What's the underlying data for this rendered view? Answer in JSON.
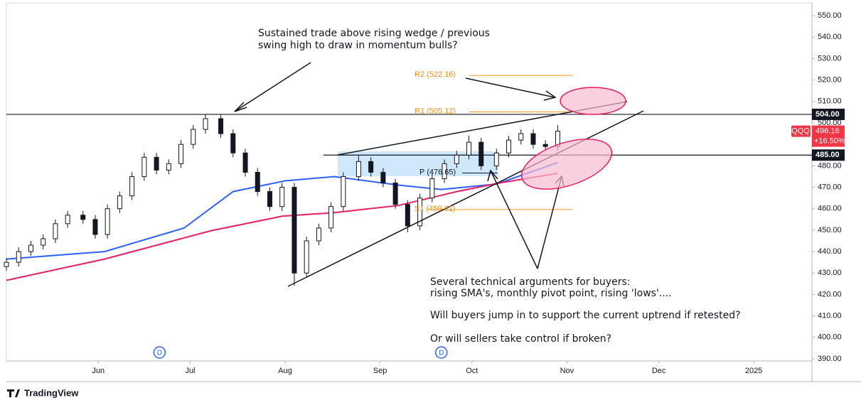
{
  "chart_data": {
    "type": "candlestick",
    "symbol": "QQQ",
    "x": [
      123,
      127,
      131,
      135,
      139,
      143,
      148,
      152,
      156,
      160,
      164,
      168,
      172,
      176,
      180,
      184,
      188,
      193,
      197,
      201,
      205,
      209,
      213,
      217,
      221,
      225,
      229,
      233,
      238,
      242,
      246,
      250,
      254,
      258,
      262,
      266,
      270,
      274,
      278,
      283,
      287,
      291,
      295,
      299,
      303
    ],
    "open": [
      433,
      435,
      440,
      443,
      446,
      453,
      457,
      455,
      448,
      460,
      466,
      475,
      484,
      478,
      481,
      490,
      497,
      502,
      495,
      486,
      477,
      468,
      461,
      470,
      430,
      445,
      451,
      461,
      475,
      482,
      477,
      472,
      462,
      452,
      465,
      474,
      481,
      485,
      491,
      480,
      486,
      492,
      495,
      490,
      489
    ],
    "high": [
      437,
      442,
      445,
      448,
      455,
      459,
      459,
      457,
      462,
      468,
      477,
      486,
      486,
      483,
      492,
      499,
      504,
      504,
      497,
      488,
      479,
      470,
      472,
      472,
      447,
      453,
      463,
      477,
      485,
      484,
      479,
      474,
      464,
      467,
      476,
      483,
      487,
      494,
      493,
      488,
      494,
      497,
      497,
      492,
      499
    ],
    "low": [
      431,
      433,
      438,
      441,
      444,
      451,
      453,
      446,
      446,
      458,
      464,
      473,
      476,
      476,
      479,
      488,
      495,
      493,
      484,
      475,
      466,
      459,
      459,
      424,
      428,
      443,
      449,
      459,
      473,
      475,
      470,
      460,
      449,
      450,
      463,
      472,
      479,
      483,
      478,
      478,
      484,
      490,
      488,
      487,
      487
    ],
    "close": [
      435,
      440,
      443,
      446,
      453,
      457,
      455,
      448,
      460,
      466,
      475,
      484,
      478,
      481,
      490,
      497,
      502,
      495,
      486,
      477,
      468,
      461,
      470,
      430,
      445,
      451,
      461,
      475,
      482,
      477,
      472,
      462,
      452,
      465,
      474,
      481,
      485,
      491,
      480,
      486,
      492,
      495,
      490,
      489,
      496.16
    ],
    "up_color": "#ffffff",
    "down_color": "#131722",
    "sma": [
      {
        "color": "#2962ff",
        "x": [
          123,
          155,
          181,
          197,
          214,
          230,
          251,
          265,
          283,
          303
        ],
        "values": [
          436.5,
          440,
          451,
          468,
          473,
          475,
          471,
          469,
          471.5,
          481.5
        ]
      },
      {
        "color": "#e91e63",
        "x": [
          123,
          155,
          190,
          213,
          230,
          251,
          270,
          284,
          303
        ],
        "values": [
          426.6,
          436.5,
          449.8,
          456.5,
          458.2,
          461.5,
          468,
          472,
          476.5
        ]
      }
    ],
    "xlim": [
      123,
      386
    ],
    "xticks": [
      {
        "value": 153,
        "label": "Jun"
      },
      {
        "value": 183,
        "label": "Jul"
      },
      {
        "value": 214,
        "label": "Aug"
      },
      {
        "value": 245,
        "label": "Sep"
      },
      {
        "value": 275,
        "label": "Oct"
      },
      {
        "value": 306,
        "label": "Nov"
      },
      {
        "value": 336,
        "label": "Dec"
      },
      {
        "value": 367,
        "label": "2025"
      }
    ],
    "ylim": [
      389,
      556
    ],
    "yticks": [
      {
        "value": 390,
        "label": "390.00"
      },
      {
        "value": 400,
        "label": "400.00"
      },
      {
        "value": 410,
        "label": "410.00"
      },
      {
        "value": 420,
        "label": "420.00"
      },
      {
        "value": 430,
        "label": "430.00"
      },
      {
        "value": 440,
        "label": "440.00"
      },
      {
        "value": 450,
        "label": "450.00"
      },
      {
        "value": 460,
        "label": "460.00"
      },
      {
        "value": 470,
        "label": "470.00"
      },
      {
        "value": 480,
        "label": "480.00"
      },
      {
        "value": 490,
        "label": "490.00"
      },
      {
        "value": 500,
        "label": "500.00"
      },
      {
        "value": 510,
        "label": "510.00"
      },
      {
        "value": 520,
        "label": "520.00"
      },
      {
        "value": 530,
        "label": "530.00"
      },
      {
        "value": 540,
        "label": "540.00"
      },
      {
        "value": 550,
        "label": "550.00"
      }
    ],
    "levels": [
      {
        "value": 504,
        "label": "504.00"
      },
      {
        "value": 485,
        "label": "485.00"
      }
    ],
    "pivots": [
      {
        "value": 522.16,
        "label": "R2 (522.16)",
        "color": "#f7931a"
      },
      {
        "value": 505.12,
        "label": "R1 (505.12)",
        "color": "#f7931a"
      },
      {
        "value": 476.65,
        "label": "P (476.65)",
        "color": "#131722"
      },
      {
        "value": 459.61,
        "label": "S1 (459.61)",
        "color": "#f7931a"
      }
    ],
    "last_price": {
      "value": 496.16,
      "label": "496.16",
      "change": "+16.50%"
    },
    "events": [
      {
        "x": 173,
        "label": "D"
      },
      {
        "x": 265,
        "label": "D"
      }
    ],
    "annotations": [
      "Sustained trade above rising wedge / previous",
      "swing high to draw in momentum bulls?",
      "Several technical arguments for buyers:",
      "rising SMA's, monthly pivot point, rising 'lows'....",
      "Will buyers jump in to support the current uptrend if retested?",
      "Or will sellers take control if broken?"
    ],
    "brand": "TradingView"
  }
}
